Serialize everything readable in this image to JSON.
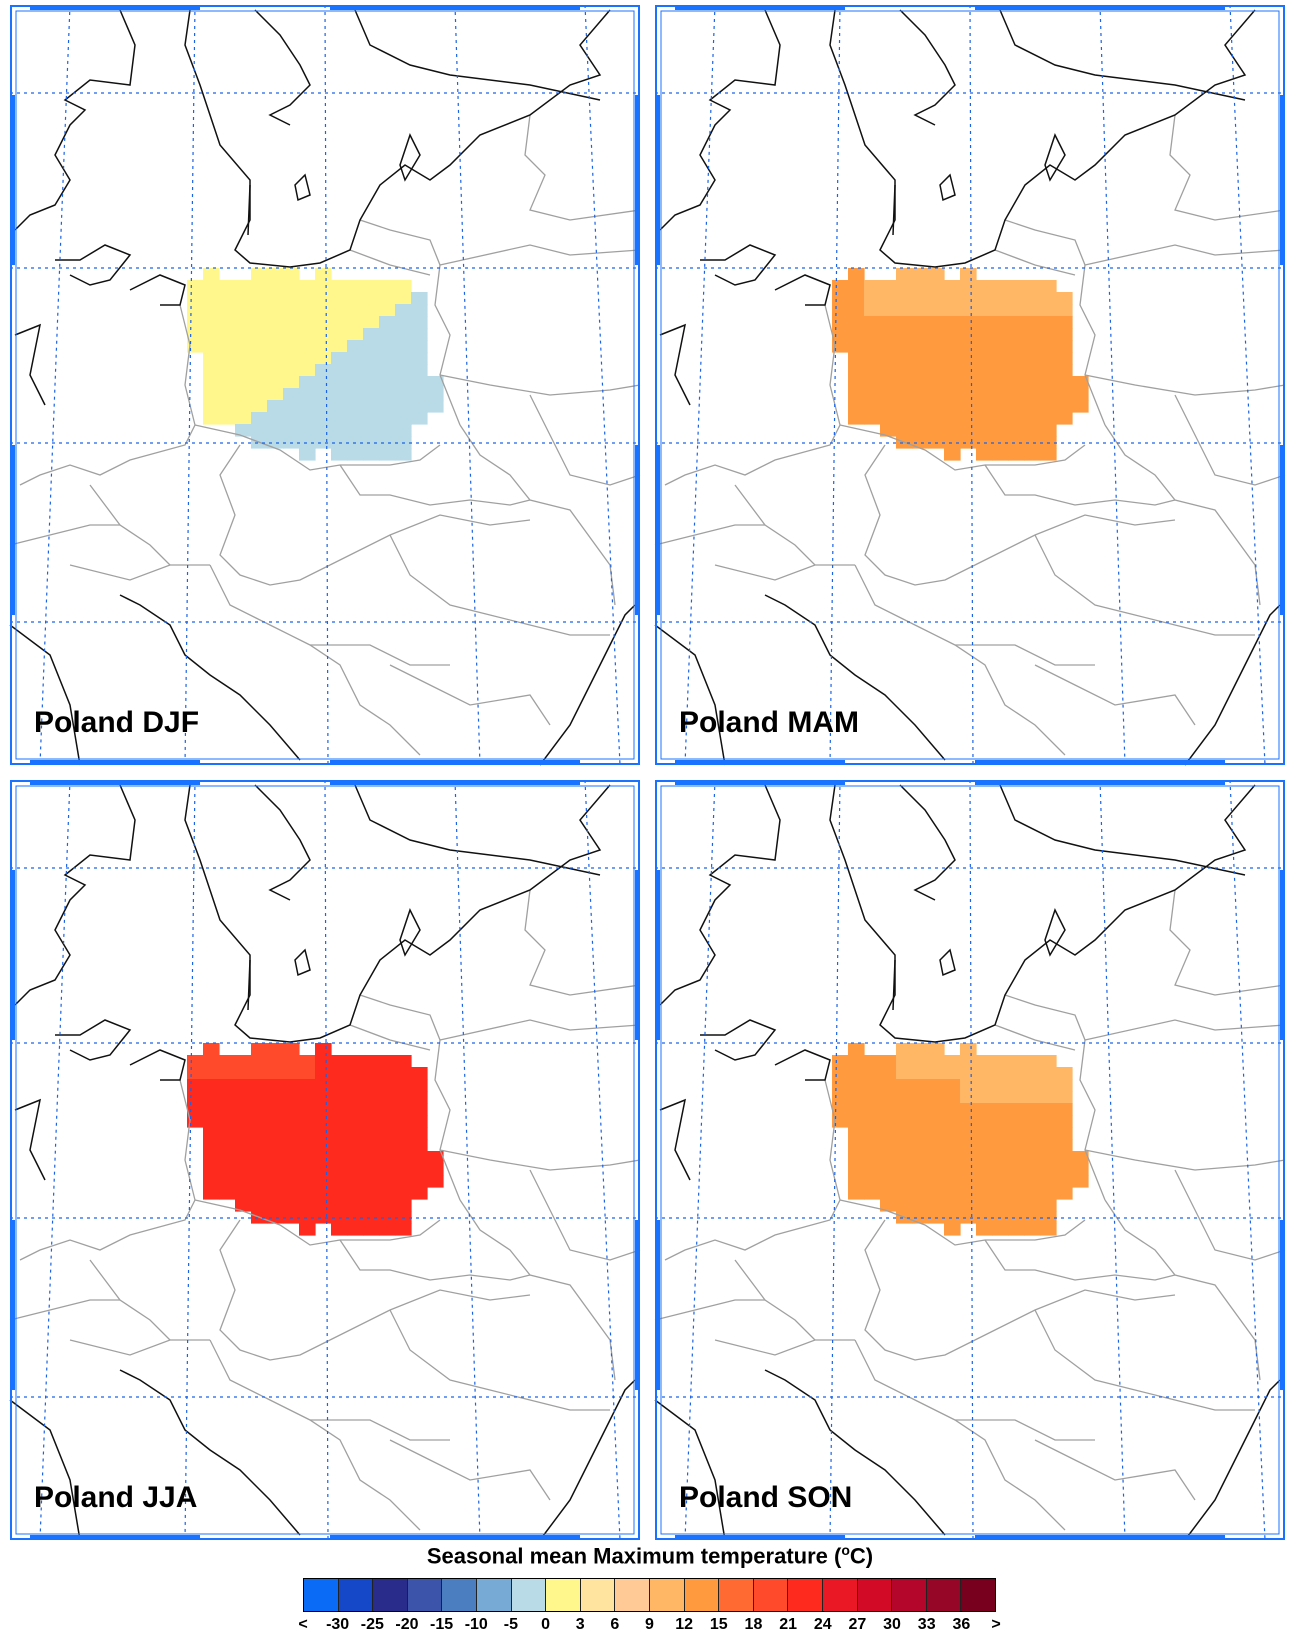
{
  "panels": [
    {
      "label": "Poland DJF",
      "season": "DJF",
      "fills": [
        "#fff68c",
        "#b9dbe8"
      ]
    },
    {
      "label": "Poland MAM",
      "season": "MAM",
      "fills": [
        "#ff9b3e",
        "#ffb665"
      ]
    },
    {
      "label": "Poland JJA",
      "season": "JJA",
      "fills": [
        "#ff2a1e",
        "#ff4b2c"
      ]
    },
    {
      "label": "Poland SON",
      "season": "SON",
      "fills": [
        "#ff9b3e",
        "#ffb665"
      ]
    }
  ],
  "legend": {
    "title": "Seasonal mean Maximum temperature (",
    "unit_sup": "o",
    "unit_suffix": "C)",
    "colors": [
      "#0a6cf6",
      "#1448c8",
      "#2a2c8c",
      "#3c55aa",
      "#4a7ec0",
      "#78aad6",
      "#b9dbe8",
      "#fff68c",
      "#ffe4a0",
      "#ffca96",
      "#ffb665",
      "#ff9b3e",
      "#ff6a32",
      "#ff4b2c",
      "#ff2a1e",
      "#ea1824",
      "#d20a26",
      "#b4062a",
      "#960626",
      "#78001e"
    ],
    "ticks": [
      "<",
      "-30",
      "-25",
      "-20",
      "-15",
      "-10",
      "-5",
      "0",
      "3",
      "6",
      "9",
      "12",
      "15",
      "18",
      "21",
      "24",
      "27",
      "30",
      "33",
      "36",
      ">"
    ]
  },
  "colors": {
    "frame_accent": "#1a73ff",
    "graticule": "#1a63e6",
    "coast": "#111111",
    "border": "#a0a0a0"
  }
}
